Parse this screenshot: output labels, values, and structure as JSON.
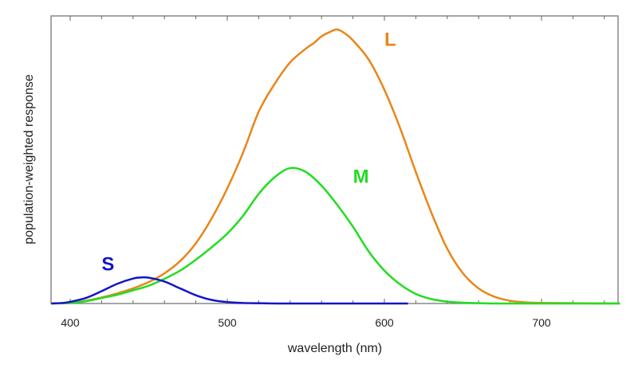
{
  "chart_data": {
    "type": "line",
    "title": "",
    "xlabel": "wavelength (nm)",
    "ylabel": "population-weighted response",
    "xlim": [
      388,
      750
    ],
    "ylim": [
      0,
      1.05
    ],
    "x_ticks": [
      400,
      500,
      600,
      700
    ],
    "x_tick_labels": [
      "400",
      "500",
      "600",
      "700"
    ],
    "minor_tick_step": 20,
    "grid": false,
    "series": [
      {
        "name": "L",
        "color": "#E8861A",
        "label_at": [
          600,
          0.94
        ],
        "x": [
          388,
          400,
          410,
          420,
          430,
          440,
          450,
          460,
          470,
          480,
          490,
          500,
          510,
          520,
          530,
          540,
          550,
          555,
          560,
          565,
          570,
          575,
          580,
          590,
          600,
          610,
          620,
          630,
          640,
          650,
          660,
          670,
          680,
          690,
          700,
          720,
          750
        ],
        "y": [
          0,
          0.002,
          0.01,
          0.022,
          0.037,
          0.055,
          0.078,
          0.11,
          0.155,
          0.22,
          0.31,
          0.42,
          0.55,
          0.7,
          0.8,
          0.88,
          0.93,
          0.95,
          0.975,
          0.99,
          1.0,
          0.985,
          0.96,
          0.89,
          0.78,
          0.64,
          0.48,
          0.33,
          0.2,
          0.11,
          0.055,
          0.025,
          0.01,
          0.004,
          0.002,
          0.001,
          0
        ]
      },
      {
        "name": "M",
        "color": "#22DD22",
        "label_at": [
          580,
          0.44
        ],
        "x": [
          388,
          400,
          410,
          420,
          430,
          440,
          450,
          460,
          470,
          480,
          490,
          500,
          510,
          520,
          530,
          540,
          550,
          560,
          570,
          580,
          590,
          600,
          610,
          620,
          630,
          640,
          650,
          660,
          680,
          750
        ],
        "y": [
          0,
          0.002,
          0.008,
          0.02,
          0.032,
          0.048,
          0.065,
          0.09,
          0.12,
          0.16,
          0.205,
          0.255,
          0.32,
          0.4,
          0.46,
          0.494,
          0.48,
          0.43,
          0.36,
          0.28,
          0.19,
          0.12,
          0.07,
          0.035,
          0.016,
          0.007,
          0.003,
          0.001,
          0,
          0
        ]
      },
      {
        "name": "S",
        "color": "#1414C8",
        "label_at": [
          420,
          0.12
        ],
        "x": [
          388,
          395,
          400,
          410,
          420,
          430,
          440,
          445,
          450,
          460,
          470,
          480,
          490,
          500,
          510,
          520,
          540,
          615
        ],
        "y": [
          0,
          0.002,
          0.006,
          0.02,
          0.045,
          0.072,
          0.091,
          0.095,
          0.094,
          0.08,
          0.055,
          0.03,
          0.013,
          0.005,
          0.002,
          0.001,
          0,
          0
        ]
      }
    ]
  }
}
